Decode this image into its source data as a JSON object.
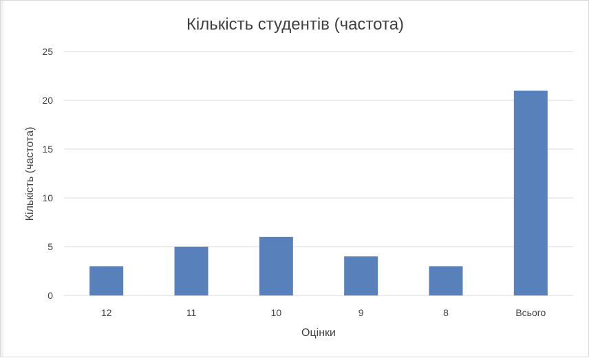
{
  "chart_data": {
    "type": "bar",
    "title": "Кількість студентів (частота)",
    "xlabel": "Оцінки",
    "ylabel": "Кількість (частота)",
    "categories": [
      "12",
      "11",
      "10",
      "9",
      "8",
      "Всього"
    ],
    "values": [
      3,
      5,
      6,
      4,
      3,
      21
    ],
    "ylim": [
      0,
      25
    ],
    "yticks": [
      0,
      5,
      10,
      15,
      20,
      25
    ],
    "grid": true,
    "legend": "none",
    "bar_color": "#5881bb"
  }
}
